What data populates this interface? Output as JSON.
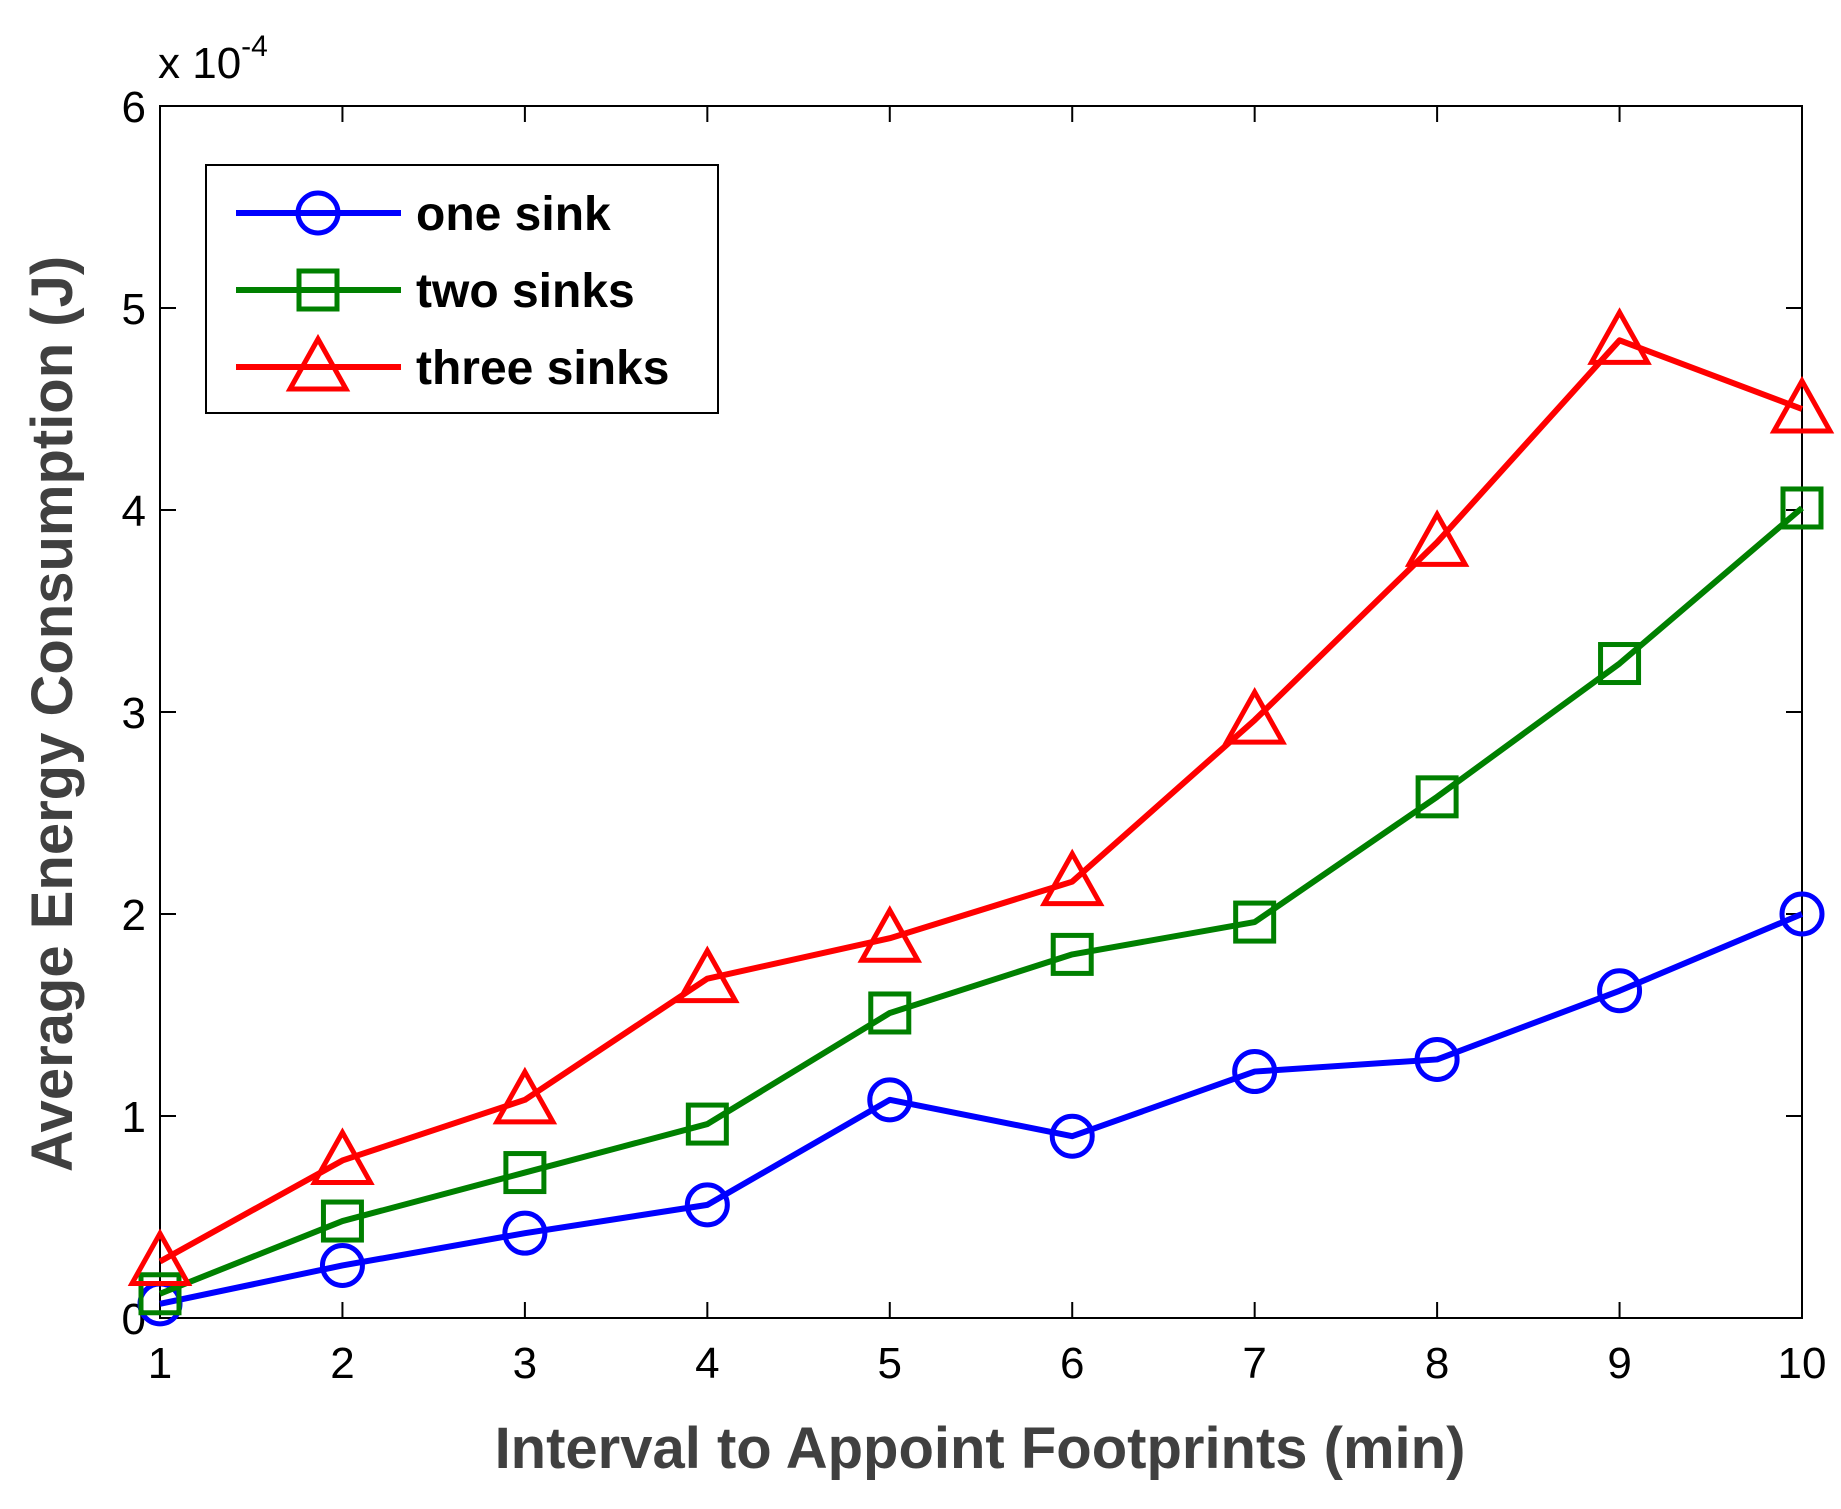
{
  "chart_data": {
    "type": "line",
    "title": "",
    "xlabel": "Interval to Appoint Footprints (min)",
    "ylabel": "Average Energy Consumption (J)",
    "y_exponent_label": "x 10",
    "y_exponent_power": "-4",
    "x": [
      1,
      2,
      3,
      4,
      5,
      6,
      7,
      8,
      9,
      10
    ],
    "xlim": [
      1,
      10
    ],
    "ylim": [
      0,
      6
    ],
    "x_ticks": [
      1,
      2,
      3,
      4,
      5,
      6,
      7,
      8,
      9,
      10
    ],
    "y_ticks": [
      0,
      1,
      2,
      3,
      4,
      5,
      6
    ],
    "grid": false,
    "legend_position": "top-left",
    "series": [
      {
        "name": "one sink",
        "color": "#0000ff",
        "marker": "circle",
        "values": [
          0.07,
          0.26,
          0.42,
          0.56,
          1.08,
          0.9,
          1.22,
          1.28,
          1.62,
          2.0
        ]
      },
      {
        "name": "two sinks",
        "color": "#008000",
        "marker": "square",
        "values": [
          0.12,
          0.48,
          0.72,
          0.96,
          1.51,
          1.8,
          1.96,
          2.58,
          3.24,
          4.01
        ]
      },
      {
        "name": "three sinks",
        "color": "#ff0000",
        "marker": "triangle",
        "values": [
          0.28,
          0.78,
          1.08,
          1.68,
          1.88,
          2.16,
          2.96,
          3.84,
          4.84,
          4.5
        ]
      }
    ]
  }
}
